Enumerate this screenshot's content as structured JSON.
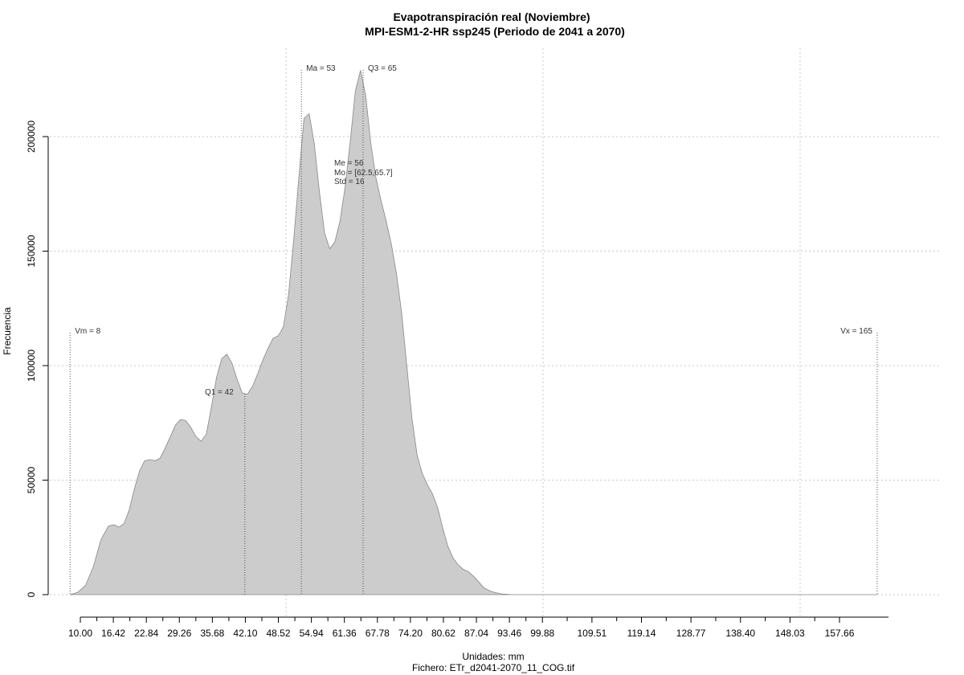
{
  "chart_data": {
    "type": "area",
    "title": "Evapotranspiración real (Noviembre)",
    "subtitle": "MPI-ESM1-2-HR ssp245 (Periodo de 2041 a 2070)",
    "xlabel": "Unidades: mm",
    "ylabel": "Frecuencia",
    "caption": "Fichero: ETr_d2041-2070_11_COG.tif",
    "xlim": [
      8,
      166
    ],
    "ylim": [
      0,
      230000
    ],
    "grid": true,
    "fill_color": "#cccccc",
    "line_color": "#888888",
    "x_ticks": [
      "10.00",
      "16.42",
      "22.84",
      "29.26",
      "35.68",
      "42.10",
      "48.52",
      "54.94",
      "61.36",
      "67.78",
      "74.20",
      "80.62",
      "87.04",
      "93.46",
      "99.88",
      "109.51",
      "119.14",
      "128.77",
      "138.40",
      "148.03",
      "157.66"
    ],
    "y_ticks": [
      "0",
      "50000",
      "100000",
      "150000",
      "200000"
    ],
    "x": [
      8,
      9.5,
      11,
      12.5,
      14,
      15.5,
      16.5,
      17.5,
      18.5,
      19.5,
      20.5,
      21.5,
      22.5,
      23.5,
      24.5,
      25.5,
      26.5,
      27.5,
      28.5,
      29.5,
      30.5,
      31.5,
      32.5,
      33.5,
      34.5,
      35.5,
      36.5,
      37.5,
      38.5,
      39.5,
      40.5,
      41.5,
      42.5,
      43.5,
      44.5,
      45.5,
      46.5,
      47.5,
      48.5,
      49.5,
      50.5,
      51.5,
      52.5,
      53.5,
      54.5,
      55.5,
      56.5,
      57.5,
      58.5,
      59.5,
      60.5,
      61.5,
      62.5,
      63.5,
      64.5,
      65.5,
      66.5,
      67.5,
      68.5,
      69.5,
      70.5,
      71.5,
      72.5,
      73.5,
      74.5,
      75.5,
      76.5,
      77.5,
      78.5,
      79.5,
      80.5,
      81.5,
      82.5,
      83.5,
      84.5,
      85.5,
      86.5,
      87.5,
      88.5,
      89.5,
      90.5,
      92,
      94,
      96,
      98,
      100,
      103,
      106,
      110,
      120,
      130,
      140,
      150,
      160,
      165
    ],
    "y": [
      0,
      1000,
      4000,
      12000,
      24000,
      30000,
      30500,
      29500,
      31000,
      37000,
      46000,
      54000,
      58500,
      59000,
      58500,
      59500,
      64000,
      69000,
      74000,
      76500,
      76000,
      73000,
      69000,
      67000,
      70000,
      82000,
      95000,
      103000,
      105000,
      101000,
      94000,
      88000,
      87500,
      91000,
      96500,
      102500,
      107500,
      112000,
      113000,
      117000,
      131000,
      155000,
      182000,
      208000,
      210000,
      197000,
      176000,
      158000,
      151000,
      154000,
      163000,
      178000,
      198000,
      220000,
      229000,
      218000,
      197000,
      182000,
      172000,
      163000,
      153000,
      140000,
      123000,
      100000,
      77000,
      61000,
      53000,
      48000,
      44000,
      38000,
      29000,
      21000,
      16000,
      13000,
      11000,
      10000,
      8000,
      5500,
      3000,
      1800,
      1000,
      300,
      0,
      0,
      0,
      0,
      0,
      0,
      0,
      0,
      0,
      0,
      0,
      0,
      0
    ],
    "reference_lines": [
      {
        "label": "Vm = 8",
        "x": 8
      },
      {
        "label": "Q1 = 42",
        "x": 42
      },
      {
        "label": "Ma = 53",
        "x": 53
      },
      {
        "label": "Q3 = 65",
        "x": 65
      },
      {
        "label": "Vx = 165",
        "x": 165
      }
    ],
    "stats": [
      "Me = 56",
      "Mo = [62.5,65.7]",
      "Std = 16"
    ]
  }
}
